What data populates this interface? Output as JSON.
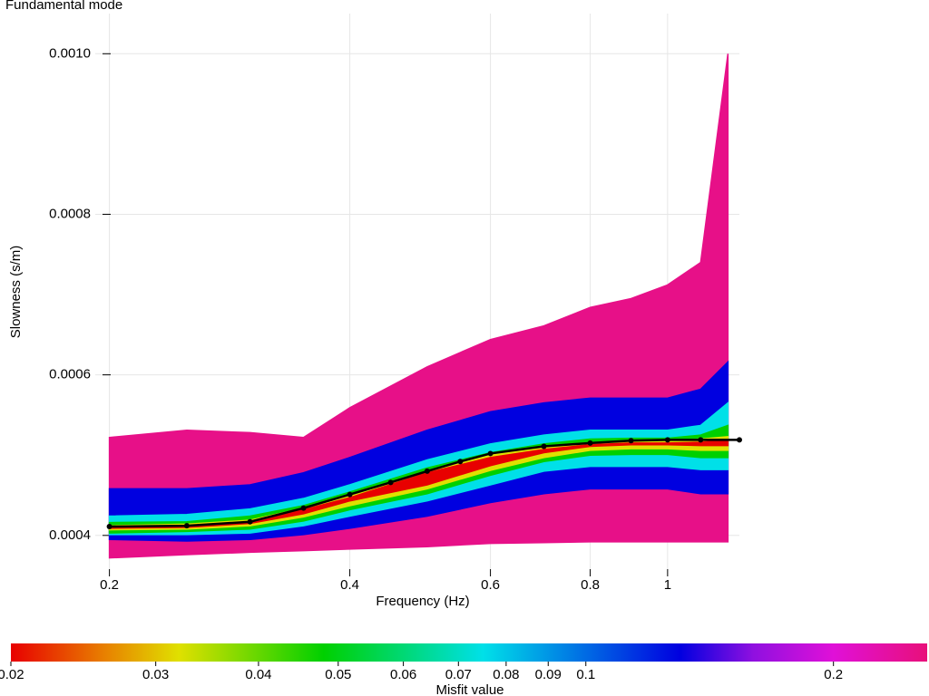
{
  "chart_data": {
    "type": "dispersion",
    "title": "Fundamental mode",
    "x_label": "Frequency (Hz)",
    "y_label": "Slowness (s/m)",
    "xscale": "log",
    "xlim": [
      0.192,
      1.23
    ],
    "xticks": [
      0.2,
      0.4,
      0.6,
      0.8,
      1
    ],
    "ylim": [
      0.000358,
      0.00105
    ],
    "yticks": [
      0.0004,
      0.0006,
      0.0008,
      {
        "value": 0.001,
        "label": "0.0010"
      }
    ],
    "grid": true,
    "bands_x": [
      0.2,
      0.25,
      0.3,
      0.35,
      0.4,
      0.5,
      0.6,
      0.7,
      0.8,
      0.9,
      1,
      1.1,
      1.19
    ],
    "bands": [
      {
        "misfit": 0.25,
        "upper": [
          0.000522,
          0.000531,
          0.000528,
          0.000522,
          0.000559,
          0.00061,
          0.000644,
          0.000661,
          0.000684,
          0.000695,
          0.000712,
          0.00074,
          0.001
        ],
        "lower": [
          0.000372,
          0.000376,
          0.000379,
          0.000381,
          0.000383,
          0.000386,
          0.00039,
          0.000391,
          0.000392,
          0.000392,
          0.000392,
          0.000392,
          0.000392
        ]
      },
      {
        "misfit": 0.13,
        "upper": [
          0.000458,
          0.000458,
          0.000463,
          0.000478,
          0.000497,
          0.000531,
          0.000554,
          0.000565,
          0.000571,
          0.000571,
          0.000571,
          0.000582,
          0.000616
        ],
        "lower": [
          0.000395,
          0.000393,
          0.000395,
          0.000401,
          0.000409,
          0.000424,
          0.000441,
          0.000452,
          0.000458,
          0.000458,
          0.000458,
          0.000452,
          0.000452
        ]
      },
      {
        "misfit": 0.075,
        "upper": [
          0.000424,
          0.000426,
          0.000433,
          0.000446,
          0.000463,
          0.000494,
          0.000514,
          0.000525,
          0.000531,
          0.000531,
          0.000531,
          0.000537,
          0.000565
        ],
        "lower": [
          0.000401,
          0.000401,
          0.000403,
          0.000412,
          0.000424,
          0.000443,
          0.000463,
          0.00048,
          0.000486,
          0.000486,
          0.000486,
          0.000482,
          0.000482
        ]
      },
      {
        "misfit": 0.048,
        "upper": [
          0.000416,
          0.000417,
          0.000424,
          0.000437,
          0.000454,
          0.000484,
          0.000503,
          0.000514,
          0.00052,
          0.000521,
          0.000521,
          0.000525,
          0.000537
        ],
        "lower": [
          0.000403,
          0.000405,
          0.000408,
          0.000418,
          0.000432,
          0.000452,
          0.000475,
          0.000492,
          0.0005,
          0.000501,
          0.000501,
          0.000497,
          0.000497
        ]
      },
      {
        "misfit": 0.032,
        "upper": [
          0.000412,
          0.000414,
          0.000419,
          0.000434,
          0.00045,
          0.00048,
          0.0005,
          0.00051,
          0.000515,
          0.000518,
          0.000518,
          0.00052,
          0.000523
        ],
        "lower": [
          0.000407,
          0.000408,
          0.000412,
          0.000423,
          0.000437,
          0.000458,
          0.000481,
          0.000497,
          0.000506,
          0.000508,
          0.000508,
          0.000506,
          0.000506
        ]
      },
      {
        "misfit": 0.02,
        "upper": [
          0.000411,
          0.000412,
          0.000417,
          0.000432,
          0.000447,
          0.000478,
          0.000497,
          0.000507,
          0.000513,
          0.000515,
          0.000515,
          0.000516,
          0.000519
        ],
        "lower": [
          0.000409,
          0.00041,
          0.000415,
          0.000427,
          0.000443,
          0.000463,
          0.000487,
          0.000503,
          0.000511,
          0.000513,
          0.000513,
          0.000512,
          0.000512
        ]
      }
    ],
    "target": {
      "color": "#000000",
      "x": [
        0.2,
        0.25,
        0.3,
        0.35,
        0.4,
        0.45,
        0.5,
        0.55,
        0.6,
        0.7,
        0.8,
        0.9,
        1,
        1.1,
        1.23
      ],
      "values": [
        0.000411,
        0.000412,
        0.000417,
        0.000434,
        0.000451,
        0.000466,
        0.00048,
        0.000492,
        0.000502,
        0.000511,
        0.000515,
        0.000518,
        0.000519,
        0.000519,
        0.000519
      ]
    },
    "colorbar": {
      "label": "Misfit value",
      "scale": "log",
      "lim": [
        0.02,
        0.26
      ],
      "ticks": [
        0.02,
        0.03,
        0.04,
        0.05,
        0.06,
        0.07,
        0.08,
        0.09,
        0.1,
        0.2
      ],
      "colormap": [
        {
          "value": 0.02,
          "color": "#e80000"
        },
        {
          "value": 0.026,
          "color": "#e88000"
        },
        {
          "value": 0.032,
          "color": "#e0e000"
        },
        {
          "value": 0.048,
          "color": "#00d000"
        },
        {
          "value": 0.075,
          "color": "#00e0e8"
        },
        {
          "value": 0.13,
          "color": "#0000e0"
        },
        {
          "value": 0.16,
          "color": "#9010e0"
        },
        {
          "value": 0.2,
          "color": "#e010d8"
        },
        {
          "value": 0.26,
          "color": "#e8107a"
        }
      ]
    }
  }
}
